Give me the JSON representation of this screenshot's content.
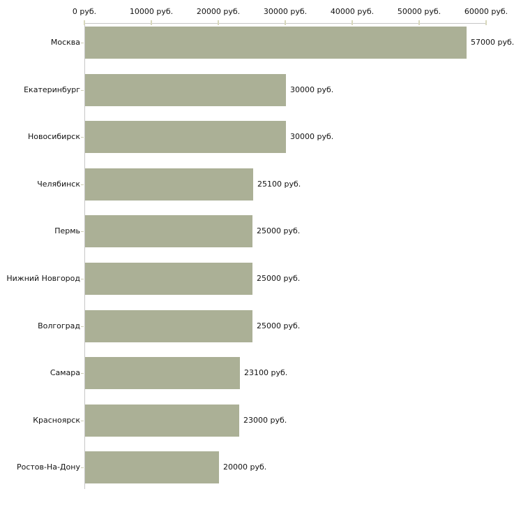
{
  "chart_data": {
    "type": "bar",
    "orientation": "horizontal",
    "title": "",
    "xlabel": "",
    "ylabel": "",
    "xlim": [
      0,
      60000
    ],
    "x_axis_position": "top",
    "grid": false,
    "legend": false,
    "x_ticks": [
      {
        "value": 0,
        "label": "0 руб."
      },
      {
        "value": 10000,
        "label": "10000 руб."
      },
      {
        "value": 20000,
        "label": "20000 руб."
      },
      {
        "value": 30000,
        "label": "30000 руб."
      },
      {
        "value": 40000,
        "label": "40000 руб."
      },
      {
        "value": 50000,
        "label": "50000 руб."
      },
      {
        "value": 60000,
        "label": "60000 руб."
      }
    ],
    "categories": [
      "Москва",
      "Екатеринбург",
      "Новосибирск",
      "Челябинск",
      "Пермь",
      "Нижний Новгород",
      "Волгоград",
      "Самара",
      "Красноярск",
      "Ростов-На-Дону"
    ],
    "values": [
      57000,
      30000,
      30000,
      25100,
      25000,
      25000,
      25000,
      23100,
      23000,
      20000
    ],
    "bars": [
      {
        "category": "Москва",
        "value": 57000,
        "label": "57000 руб."
      },
      {
        "category": "Екатеринбург",
        "value": 30000,
        "label": "30000 руб."
      },
      {
        "category": "Новосибирск",
        "value": 30000,
        "label": "30000 руб."
      },
      {
        "category": "Челябинск",
        "value": 25100,
        "label": "25100 руб."
      },
      {
        "category": "Пермь",
        "value": 25000,
        "label": "25000 руб."
      },
      {
        "category": "Нижний Новгород",
        "value": 25000,
        "label": "25000 руб."
      },
      {
        "category": "Волгоград",
        "value": 25000,
        "label": "25000 руб."
      },
      {
        "category": "Самара",
        "value": 23100,
        "label": "23100 руб."
      },
      {
        "category": "Красноярск",
        "value": 23000,
        "label": "23000 руб."
      },
      {
        "category": "Ростов-На-Дону",
        "value": 20000,
        "label": "20000 руб."
      }
    ],
    "colors": {
      "bar": "#abb096",
      "axis": "#c6c6c6",
      "tick": "#d8d8bc",
      "cat_tick": "#cbcbb4",
      "text": "#111111",
      "background": "#ffffff"
    }
  }
}
